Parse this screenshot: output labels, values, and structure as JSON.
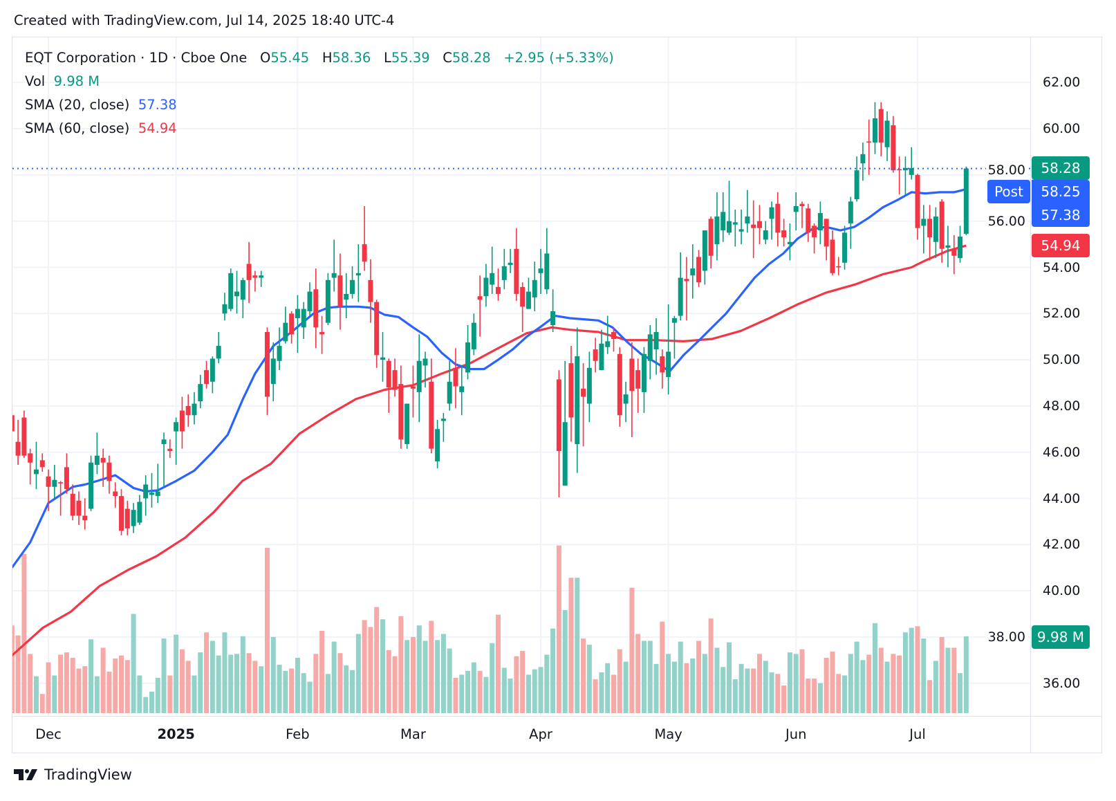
{
  "header": {
    "created_text": "Created with TradingView.com, Jul 14, 2025 18:40 UTC-4"
  },
  "legend": {
    "symbol_line": "EQT Corporation · 1D · Cboe One",
    "o_label": "O",
    "o_value": "55.45",
    "h_label": "H",
    "h_value": "58.36",
    "l_label": "L",
    "l_value": "55.39",
    "c_label": "C",
    "c_value": "58.28",
    "change": "+2.95 (+5.33%)",
    "vol_label": "Vol",
    "vol_value": "9.98 M",
    "sma20_label": "SMA (20, close)",
    "sma20_value": "57.38",
    "sma60_label": "SMA (60, close)",
    "sma60_value": "54.94"
  },
  "price_labels": {
    "last": "58.28",
    "post_tag": "Post",
    "post": "58.25",
    "sma20": "57.38",
    "sma60": "54.94",
    "volume": "9.98 M"
  },
  "footer": {
    "brand": "TradingView"
  },
  "colors": {
    "up": "#089981",
    "down": "#f23645",
    "sma20": "#2962ff",
    "sma60": "#f23645",
    "up_volume": "#92d2c8",
    "down_volume": "#f7a9a7"
  },
  "chart_data": {
    "type": "candlestick",
    "title": "EQT Corporation · 1D · Cboe One",
    "ylim": [
      35,
      63.5
    ],
    "y_ticks": [
      "62.00",
      "60.00",
      "58.00",
      "56.00",
      "54.00",
      "52.00",
      "50.00",
      "48.00",
      "46.00",
      "44.00",
      "42.00",
      "40.00",
      "38.00",
      "36.00"
    ],
    "x_labels": [
      {
        "label": "Dec",
        "index": 6
      },
      {
        "label": "2025",
        "index": 27,
        "bold": true
      },
      {
        "label": "Feb",
        "index": 47
      },
      {
        "label": "Mar",
        "index": 66
      },
      {
        "label": "Apr",
        "index": 87
      },
      {
        "label": "May",
        "index": 108
      },
      {
        "label": "Jun",
        "index": 129
      },
      {
        "label": "Jul",
        "index": 149
      }
    ],
    "ohlc_fields": [
      "open",
      "high",
      "low",
      "close"
    ],
    "candles": [
      [
        47.6,
        48.0,
        46.9,
        46.9
      ],
      [
        46.45,
        47.4,
        45.45,
        45.85
      ],
      [
        47.5,
        47.8,
        45.75,
        45.85
      ],
      [
        45.95,
        46.15,
        44.6,
        45.55
      ],
      [
        45.05,
        46.45,
        44.4,
        45.25
      ],
      [
        45.65,
        45.95,
        45.15,
        45.35
      ],
      [
        44.95,
        45.25,
        43.45,
        44.5
      ],
      [
        44.5,
        45.45,
        44.0,
        44.8
      ],
      [
        44.7,
        44.75,
        43.25,
        44.65
      ],
      [
        45.35,
        45.95,
        44.2,
        44.4
      ],
      [
        44.2,
        44.6,
        43.05,
        43.25
      ],
      [
        43.9,
        44.3,
        42.85,
        43.25
      ],
      [
        43.25,
        44.0,
        42.65,
        43.05
      ],
      [
        43.55,
        45.85,
        43.45,
        45.55
      ],
      [
        45.45,
        46.85,
        45.05,
        45.85
      ],
      [
        45.75,
        46.15,
        44.5,
        45.55
      ],
      [
        45.55,
        45.85,
        44.2,
        44.75
      ],
      [
        44.3,
        44.7,
        43.6,
        44.1
      ],
      [
        44.1,
        44.4,
        42.4,
        42.6
      ],
      [
        43.55,
        43.9,
        42.4,
        42.7
      ],
      [
        42.8,
        43.8,
        42.5,
        43.5
      ],
      [
        42.95,
        44.15,
        42.85,
        43.85
      ],
      [
        44.0,
        45.0,
        43.25,
        44.6
      ],
      [
        44.15,
        45.1,
        43.6,
        44.25
      ],
      [
        44.1,
        45.5,
        43.8,
        44.3
      ],
      [
        46.35,
        46.85,
        44.5,
        46.55
      ],
      [
        46.15,
        46.55,
        45.75,
        46.05
      ],
      [
        46.9,
        47.5,
        45.45,
        47.3
      ],
      [
        47.8,
        48.4,
        46.15,
        46.9
      ],
      [
        48.0,
        48.5,
        47.1,
        47.6
      ],
      [
        47.6,
        48.6,
        47.2,
        48.1
      ],
      [
        48.2,
        49.35,
        47.9,
        48.95
      ],
      [
        49.55,
        49.95,
        48.75,
        48.95
      ],
      [
        49.05,
        50.15,
        48.55,
        50.05
      ],
      [
        50.05,
        51.2,
        49.85,
        50.6
      ],
      [
        52.0,
        52.9,
        51.7,
        52.4
      ],
      [
        52.2,
        53.95,
        52.1,
        53.75
      ],
      [
        52.75,
        53.85,
        52.0,
        52.95
      ],
      [
        52.6,
        53.55,
        51.8,
        53.45
      ],
      [
        54.15,
        55.1,
        52.45,
        53.45
      ],
      [
        53.65,
        53.85,
        52.95,
        53.55
      ],
      [
        53.55,
        53.85,
        53.15,
        53.65
      ],
      [
        51.2,
        51.4,
        47.6,
        48.4
      ],
      [
        48.95,
        50.75,
        48.2,
        50.05
      ],
      [
        49.95,
        51.4,
        49.55,
        50.6
      ],
      [
        50.8,
        52.3,
        50.7,
        51.6
      ],
      [
        52.0,
        52.1,
        50.7,
        51.1
      ],
      [
        51.8,
        52.8,
        50.3,
        52.2
      ],
      [
        51.4,
        52.5,
        50.9,
        52.2
      ],
      [
        52.1,
        53.35,
        51.9,
        52.95
      ],
      [
        53.05,
        53.95,
        50.5,
        51.4
      ],
      [
        51.2,
        51.9,
        50.25,
        51.1
      ],
      [
        51.6,
        53.75,
        51.5,
        53.45
      ],
      [
        53.55,
        55.2,
        52.95,
        53.75
      ],
      [
        53.65,
        54.6,
        51.3,
        52.3
      ],
      [
        52.6,
        53.75,
        51.8,
        52.85
      ],
      [
        52.85,
        54.05,
        52.65,
        53.45
      ],
      [
        53.65,
        55.0,
        52.5,
        53.75
      ],
      [
        55.0,
        56.65,
        53.85,
        54.25
      ],
      [
        53.45,
        54.35,
        51.6,
        52.5
      ],
      [
        52.5,
        52.6,
        49.65,
        50.2
      ],
      [
        50.0,
        51.2,
        49.05,
        50.1
      ],
      [
        49.95,
        50.05,
        47.7,
        48.8
      ],
      [
        49.55,
        50.05,
        48.4,
        48.7
      ],
      [
        48.95,
        49.75,
        46.15,
        46.55
      ],
      [
        46.35,
        48.1,
        46.15,
        48.1
      ],
      [
        48.85,
        49.75,
        47.5,
        48.75
      ],
      [
        48.6,
        51.1,
        47.3,
        49.95
      ],
      [
        49.75,
        50.35,
        48.8,
        50.05
      ],
      [
        49.05,
        50.05,
        45.95,
        46.15
      ],
      [
        45.6,
        47.4,
        45.3,
        47.0
      ],
      [
        47.35,
        47.7,
        46.45,
        47.45
      ],
      [
        48.1,
        49.95,
        47.8,
        49.05
      ],
      [
        49.65,
        50.5,
        47.9,
        48.85
      ],
      [
        48.6,
        49.75,
        47.6,
        48.85
      ],
      [
        49.45,
        51.5,
        49.15,
        50.75
      ],
      [
        50.45,
        52.0,
        50.2,
        51.6
      ],
      [
        52.75,
        53.65,
        51.0,
        52.6
      ],
      [
        52.75,
        54.15,
        52.3,
        53.55
      ],
      [
        53.25,
        54.9,
        52.85,
        53.75
      ],
      [
        53.15,
        53.95,
        52.55,
        52.85
      ],
      [
        53.45,
        54.8,
        53.05,
        54.05
      ],
      [
        54.1,
        54.8,
        53.75,
        54.2
      ],
      [
        54.8,
        55.7,
        52.55,
        52.85
      ],
      [
        53.15,
        53.35,
        51.2,
        52.3
      ],
      [
        52.2,
        53.55,
        52.2,
        52.95
      ],
      [
        52.7,
        54.25,
        52.1,
        53.45
      ],
      [
        53.75,
        54.8,
        52.85,
        53.95
      ],
      [
        53.05,
        55.7,
        52.85,
        54.6
      ],
      [
        51.5,
        53.05,
        51.2,
        52.1
      ],
      [
        49.15,
        49.55,
        44.05,
        46.05
      ],
      [
        44.55,
        49.95,
        44.55,
        47.3
      ],
      [
        49.85,
        50.6,
        46.45,
        47.5
      ],
      [
        46.35,
        51.4,
        45.1,
        50.15
      ],
      [
        48.75,
        49.85,
        46.25,
        48.4
      ],
      [
        48.1,
        50.35,
        47.3,
        49.65
      ],
      [
        50.45,
        50.95,
        49.45,
        49.95
      ],
      [
        49.55,
        51.3,
        49.55,
        50.7
      ],
      [
        50.55,
        51.9,
        50.25,
        50.8
      ],
      [
        51.2,
        51.4,
        50.35,
        50.9
      ],
      [
        50.25,
        50.55,
        47.1,
        47.6
      ],
      [
        48.1,
        49.05,
        47.3,
        48.5
      ],
      [
        50.05,
        50.75,
        46.65,
        48.65
      ],
      [
        49.55,
        50.05,
        47.7,
        48.75
      ],
      [
        48.6,
        50.55,
        47.7,
        50.25
      ],
      [
        49.95,
        51.5,
        49.15,
        51.1
      ],
      [
        50.45,
        51.8,
        49.35,
        51.2
      ],
      [
        50.15,
        50.45,
        48.75,
        49.45
      ],
      [
        49.25,
        52.4,
        48.5,
        50.35
      ],
      [
        51.6,
        51.9,
        50.05,
        51.8
      ],
      [
        51.9,
        54.65,
        51.7,
        53.55
      ],
      [
        53.5,
        54.45,
        51.7,
        53.4
      ],
      [
        53.65,
        55.0,
        52.65,
        53.95
      ],
      [
        54.45,
        54.75,
        53.15,
        53.35
      ],
      [
        53.85,
        55.6,
        53.25,
        55.6
      ],
      [
        56.1,
        56.2,
        53.95,
        54.5
      ],
      [
        55.0,
        57.25,
        54.3,
        56.2
      ],
      [
        55.6,
        57.25,
        55.1,
        56.4
      ],
      [
        55.5,
        57.75,
        55.4,
        56.0
      ],
      [
        55.85,
        56.5,
        54.9,
        55.95
      ],
      [
        55.55,
        56.5,
        55.0,
        55.65
      ],
      [
        55.9,
        57.35,
        55.5,
        56.2
      ],
      [
        55.85,
        56.9,
        54.4,
        55.7
      ],
      [
        56.0,
        56.7,
        55.0,
        55.7
      ],
      [
        55.2,
        56.0,
        55.0,
        55.6
      ],
      [
        56.1,
        56.85,
        55.2,
        56.6
      ],
      [
        56.75,
        57.25,
        54.9,
        55.5
      ],
      [
        55.6,
        56.1,
        54.9,
        55.3
      ],
      [
        55.0,
        55.9,
        54.3,
        55.1
      ],
      [
        56.4,
        57.25,
        55.6,
        56.65
      ],
      [
        56.75,
        56.85,
        55.7,
        56.65
      ],
      [
        56.55,
        56.75,
        55.1,
        55.5
      ],
      [
        55.8,
        55.9,
        54.6,
        55.3
      ],
      [
        55.6,
        56.85,
        55.0,
        56.35
      ],
      [
        56.1,
        56.1,
        54.3,
        54.9
      ],
      [
        55.2,
        55.6,
        53.65,
        53.75
      ],
      [
        54.05,
        54.45,
        53.65,
        54.0
      ],
      [
        54.2,
        55.8,
        53.9,
        55.5
      ],
      [
        55.9,
        57.05,
        54.8,
        56.85
      ],
      [
        56.95,
        58.8,
        56.85,
        58.2
      ],
      [
        58.5,
        59.4,
        57.75,
        58.9
      ],
      [
        59.45,
        60.4,
        58.0,
        59.4
      ],
      [
        59.4,
        61.15,
        58.9,
        60.45
      ],
      [
        60.85,
        61.15,
        58.8,
        59.4
      ],
      [
        59.2,
        60.75,
        58.6,
        60.35
      ],
      [
        60.15,
        60.55,
        58.1,
        58.2
      ],
      [
        58.25,
        58.8,
        57.15,
        58.2
      ],
      [
        58.2,
        58.8,
        57.15,
        58.3
      ],
      [
        58.0,
        59.2,
        57.8,
        58.3
      ],
      [
        58.0,
        58.05,
        55.2,
        55.7
      ],
      [
        55.8,
        56.7,
        54.6,
        56.1
      ],
      [
        56.1,
        56.7,
        54.3,
        55.3
      ],
      [
        55.1,
        56.6,
        54.4,
        56.2
      ],
      [
        56.85,
        56.95,
        54.2,
        54.8
      ],
      [
        54.85,
        55.8,
        54.0,
        54.95
      ],
      [
        54.8,
        55.4,
        53.7,
        54.5
      ],
      [
        54.4,
        55.8,
        54.2,
        55.33
      ],
      [
        55.45,
        58.36,
        55.39,
        58.28
      ]
    ],
    "volume_unit": "M",
    "volume": [
      11.4,
      10.1,
      20.7,
      7.7,
      4.8,
      2.5,
      6.6,
      4.9,
      7.6,
      7.9,
      7.2,
      5.8,
      6.1,
      9.6,
      4.8,
      8.5,
      5.4,
      7.1,
      7.5,
      6.9,
      12.9,
      4.9,
      2.1,
      2.8,
      4.6,
      9.7,
      4.9,
      10.2,
      8.3,
      6.8,
      4.9,
      7.9,
      10.5,
      9.4,
      7.5,
      10.5,
      7.6,
      7.7,
      10.0,
      7.8,
      6.8,
      6.1,
      21.5,
      9.9,
      6.3,
      5.5,
      5.8,
      7.2,
      5.2,
      4.1,
      7.7,
      10.7,
      5.1,
      9.3,
      7.8,
      6.2,
      5.6,
      10.3,
      12.1,
      11.2,
      13.8,
      12.2,
      8.2,
      7.4,
      12.6,
      9.5,
      9.9,
      11.4,
      9.4,
      12.0,
      9.5,
      10.3,
      8.4,
      4.6,
      5.0,
      5.5,
      6.6,
      5.5,
      4.7,
      9.1,
      12.8,
      5.9,
      4.5,
      7.4,
      8.1,
      5.0,
      5.7,
      6.0,
      7.6,
      11.0,
      21.8,
      13.4,
      17.6,
      17.6,
      9.7,
      8.9,
      4.4,
      5.3,
      6.5,
      5.0,
      8.3,
      6.7,
      16.3,
      10.3,
      9.4,
      9.4,
      6.4,
      11.9,
      7.7,
      6.7,
      9.3,
      6.5,
      7.1,
      9.4,
      7.7,
      12.3,
      8.5,
      6.0,
      9.2,
      4.4,
      6.4,
      5.8,
      5.8,
      7.7,
      6.8,
      5.3,
      5.1,
      3.6,
      7.9,
      7.7,
      8.3,
      4.5,
      4.5,
      3.9,
      7.2,
      8.0,
      5.1,
      4.9,
      7.7,
      9.3,
      6.9,
      7.6,
      11.7,
      8.5,
      6.7,
      7.7,
      7.5,
      10.5,
      11.1,
      11.3,
      9.7,
      4.3,
      6.8,
      9.9,
      8.5,
      8.5,
      5.2,
      9.98
    ],
    "sma20": [
      [
        0,
        41.0
      ],
      [
        3,
        42.1
      ],
      [
        6,
        43.8
      ],
      [
        10,
        44.5
      ],
      [
        12,
        44.6
      ],
      [
        14,
        44.75
      ],
      [
        17,
        45.0
      ],
      [
        20,
        44.45
      ],
      [
        22,
        44.3
      ],
      [
        24,
        44.35
      ],
      [
        27,
        44.75
      ],
      [
        30,
        45.2
      ],
      [
        33,
        46.0
      ],
      [
        35.5,
        46.75
      ],
      [
        38,
        48.3
      ],
      [
        40,
        49.4
      ],
      [
        43,
        50.6
      ],
      [
        46,
        51.2
      ],
      [
        49.6,
        52.0
      ],
      [
        52,
        52.25
      ],
      [
        54,
        52.3
      ],
      [
        57,
        52.3
      ],
      [
        59,
        52.25
      ],
      [
        61.3,
        51.95
      ],
      [
        63.6,
        51.85
      ],
      [
        66,
        51.4
      ],
      [
        68.3,
        51.0
      ],
      [
        70.7,
        50.3
      ],
      [
        73,
        49.8
      ],
      [
        75.4,
        49.6
      ],
      [
        77.7,
        49.6
      ],
      [
        80,
        50.0
      ],
      [
        82.4,
        50.45
      ],
      [
        84.7,
        51.0
      ],
      [
        87.1,
        51.45
      ],
      [
        89.4,
        51.9
      ],
      [
        91.8,
        51.8
      ],
      [
        94.1,
        51.75
      ],
      [
        96.5,
        51.7
      ],
      [
        98.8,
        51.4
      ],
      [
        101.1,
        50.8
      ],
      [
        103.5,
        50.25
      ],
      [
        105.8,
        49.9
      ],
      [
        108.2,
        49.5
      ],
      [
        110.5,
        50.2
      ],
      [
        112.9,
        50.8
      ],
      [
        115.2,
        51.4
      ],
      [
        117.5,
        52.0
      ],
      [
        119.9,
        52.8
      ],
      [
        122.2,
        53.55
      ],
      [
        124.6,
        54.15
      ],
      [
        126.9,
        54.6
      ],
      [
        129.3,
        55.25
      ],
      [
        131.6,
        55.65
      ],
      [
        133.9,
        55.75
      ],
      [
        136.3,
        55.6
      ],
      [
        138.6,
        55.75
      ],
      [
        141,
        56.15
      ],
      [
        143.3,
        56.6
      ],
      [
        145.6,
        56.9
      ],
      [
        148,
        57.25
      ],
      [
        150.3,
        57.2
      ],
      [
        152.7,
        57.25
      ],
      [
        155,
        57.25
      ],
      [
        157,
        57.38
      ]
    ],
    "sma60": [
      [
        0,
        37.2
      ],
      [
        5.1,
        38.4
      ],
      [
        9.7,
        39.1
      ],
      [
        14.4,
        40.2
      ],
      [
        19.1,
        40.9
      ],
      [
        23.8,
        41.5
      ],
      [
        28.5,
        42.3
      ],
      [
        33.2,
        43.4
      ],
      [
        37.9,
        44.75
      ],
      [
        42.6,
        45.5
      ],
      [
        47.3,
        46.8
      ],
      [
        52,
        47.6
      ],
      [
        56.6,
        48.3
      ],
      [
        61.3,
        48.7
      ],
      [
        66,
        48.9
      ],
      [
        70.7,
        49.4
      ],
      [
        75.4,
        49.85
      ],
      [
        80,
        50.5
      ],
      [
        84.7,
        51.15
      ],
      [
        88.8,
        51.4
      ],
      [
        91.8,
        51.3
      ],
      [
        96.5,
        51.2
      ],
      [
        101.1,
        50.85
      ],
      [
        105.8,
        50.85
      ],
      [
        110.5,
        50.8
      ],
      [
        115.2,
        50.9
      ],
      [
        119.9,
        51.25
      ],
      [
        124.6,
        51.8
      ],
      [
        129.3,
        52.4
      ],
      [
        133.9,
        52.9
      ],
      [
        138.6,
        53.25
      ],
      [
        143.3,
        53.7
      ],
      [
        148,
        54.0
      ],
      [
        150.3,
        54.3
      ],
      [
        153.8,
        54.7
      ],
      [
        157,
        54.94
      ]
    ],
    "last_close": 58.28,
    "grid": true
  }
}
